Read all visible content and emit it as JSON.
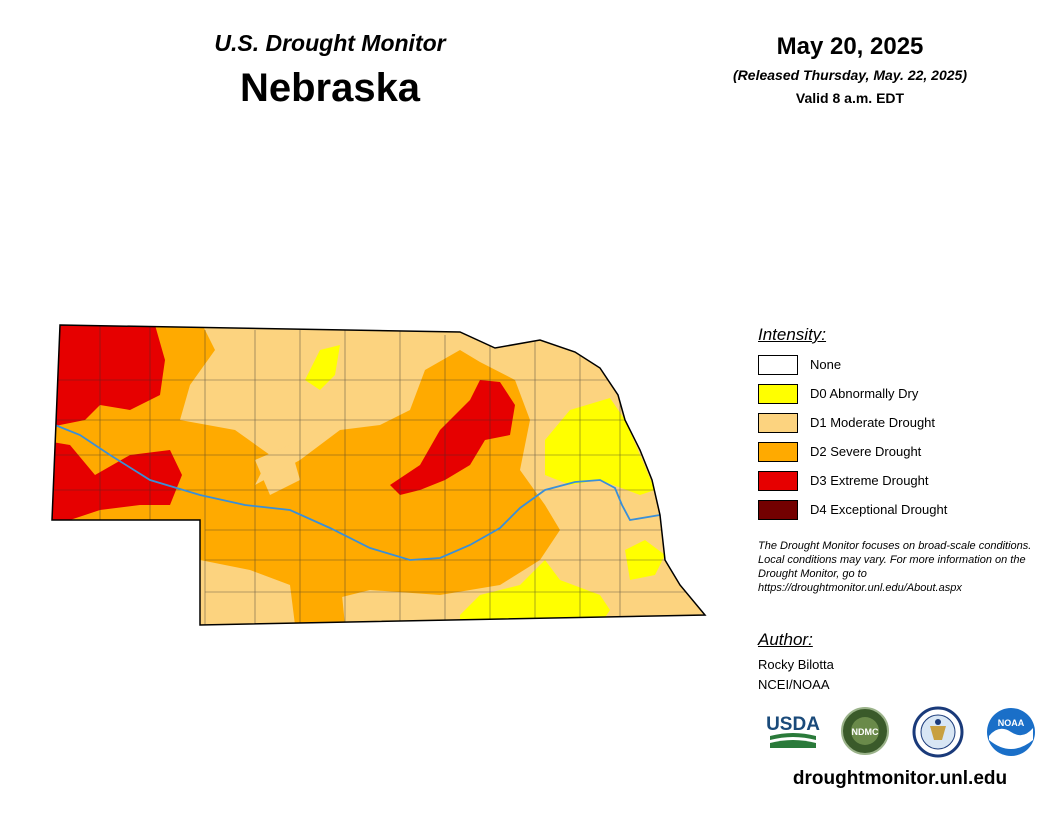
{
  "header": {
    "subtitle": "U.S. Drought Monitor",
    "state": "Nebraska",
    "date": "May 20, 2025",
    "released": "(Released Thursday, May. 22, 2025)",
    "valid": "Valid 8 a.m. EDT"
  },
  "legend": {
    "title": "Intensity:",
    "items": [
      {
        "label": "None",
        "color": "#ffffff"
      },
      {
        "label": "D0 Abnormally Dry",
        "color": "#ffff00"
      },
      {
        "label": "D1 Moderate Drought",
        "color": "#fcd37f"
      },
      {
        "label": "D2 Severe Drought",
        "color": "#ffaa00"
      },
      {
        "label": "D3 Extreme Drought",
        "color": "#e60000"
      },
      {
        "label": "D4 Exceptional Drought",
        "color": "#730000"
      }
    ]
  },
  "note": "The Drought Monitor focuses on broad-scale conditions. Local conditions may vary. For more information on the Drought Monitor, go to https://droughtmonitor.unl.edu/About.aspx",
  "author": {
    "title": "Author:",
    "name": "Rocky Bilotta",
    "org": "NCEI/NOAA"
  },
  "logos": [
    {
      "name": "USDA",
      "icon": "usda-logo"
    },
    {
      "name": "NDMC",
      "icon": "ndmc-logo"
    },
    {
      "name": "Department of Commerce",
      "icon": "commerce-seal"
    },
    {
      "name": "NOAA",
      "icon": "noaa-logo"
    }
  ],
  "site": "droughtmonitor.unl.edu"
}
